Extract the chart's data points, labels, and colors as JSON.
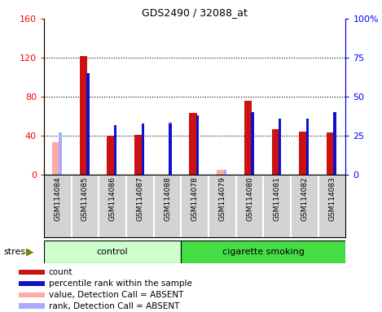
{
  "title": "GDS2490 / 32088_at",
  "samples": [
    "GSM114084",
    "GSM114085",
    "GSM114086",
    "GSM114087",
    "GSM114088",
    "GSM114078",
    "GSM114079",
    "GSM114080",
    "GSM114081",
    "GSM114082",
    "GSM114083"
  ],
  "count_values": [
    0,
    122,
    40,
    41,
    0,
    63,
    0,
    76,
    47,
    44,
    43
  ],
  "percentile_values": [
    0,
    65,
    32,
    33,
    33,
    38,
    0,
    40,
    36,
    36,
    40
  ],
  "absent_value_bars": [
    33,
    0,
    0,
    0,
    0,
    0,
    5,
    0,
    0,
    0,
    0
  ],
  "absent_rank_bars": [
    27,
    0,
    0,
    0,
    34,
    0,
    3,
    0,
    0,
    0,
    0
  ],
  "left_ylim": [
    0,
    160
  ],
  "right_ylim": [
    0,
    100
  ],
  "left_yticks": [
    0,
    40,
    80,
    120,
    160
  ],
  "right_yticks": [
    0,
    25,
    50,
    75,
    100
  ],
  "right_yticklabels": [
    "0",
    "25",
    "50",
    "75",
    "100%"
  ],
  "grid_lines": [
    40,
    80,
    120
  ],
  "count_color": "#cc1111",
  "percentile_color": "#1111cc",
  "absent_value_color": "#ffaaaa",
  "absent_rank_color": "#aaaaff",
  "bg_color": "#d3d3d3",
  "stress_label": "stress",
  "control_color": "#ccffcc",
  "smoking_color": "#44dd44",
  "legend_items": [
    {
      "color": "#cc1111",
      "label": "count",
      "marker": "s"
    },
    {
      "color": "#1111cc",
      "label": "percentile rank within the sample",
      "marker": "s"
    },
    {
      "color": "#ffaaaa",
      "label": "value, Detection Call = ABSENT",
      "marker": "s"
    },
    {
      "color": "#aaaaff",
      "label": "rank, Detection Call = ABSENT",
      "marker": "s"
    }
  ]
}
